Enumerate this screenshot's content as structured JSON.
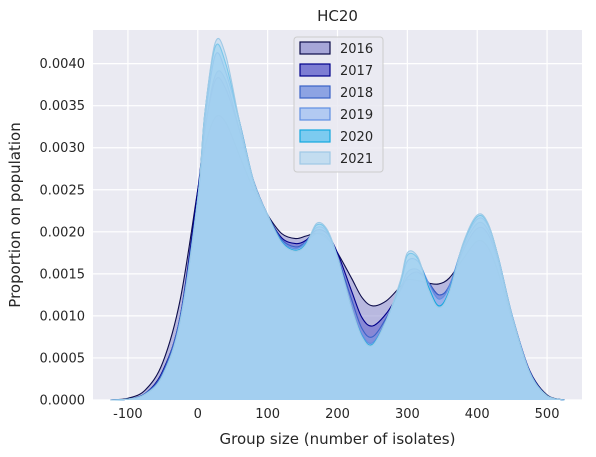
{
  "chart_data": {
    "type": "area",
    "title": "HC20",
    "xlabel": "Group size (number of isolates)",
    "ylabel": "Proportion on population",
    "xlim": [
      -150,
      550
    ],
    "ylim": [
      0,
      0.0044
    ],
    "x_ticks": [
      -100,
      0,
      100,
      200,
      300,
      400,
      500
    ],
    "y_ticks": [
      0.0,
      0.0005,
      0.001,
      0.0015,
      0.002,
      0.0025,
      0.003,
      0.0035,
      0.004
    ],
    "y_tick_labels": [
      "0.0000",
      "0.0005",
      "0.0010",
      "0.0015",
      "0.0020",
      "0.0025",
      "0.0030",
      "0.0035",
      "0.0040"
    ],
    "grid": true,
    "legend_position": "top-center",
    "x": [
      -125,
      -100,
      -75,
      -50,
      -25,
      0,
      10,
      25,
      40,
      60,
      80,
      100,
      120,
      140,
      155,
      170,
      185,
      200,
      220,
      235,
      250,
      270,
      290,
      300,
      315,
      330,
      345,
      360,
      380,
      400,
      415,
      430,
      450,
      475,
      500,
      525
    ],
    "series": [
      {
        "name": "2016",
        "fill": "#9a9ad4",
        "edge": "#0c0c4a",
        "values": [
          0.0,
          2e-05,
          0.00012,
          0.00045,
          0.0012,
          0.0025,
          0.003,
          0.00336,
          0.0033,
          0.0029,
          0.0025,
          0.0022,
          0.00198,
          0.00192,
          0.00195,
          0.00198,
          0.00192,
          0.00175,
          0.00145,
          0.00122,
          0.00112,
          0.00118,
          0.00135,
          0.00143,
          0.00142,
          0.00139,
          0.00138,
          0.00145,
          0.00168,
          0.00189,
          0.00182,
          0.00152,
          0.00095,
          0.00035,
          6e-05,
          0.0
        ]
      },
      {
        "name": "2017",
        "fill": "#6a6acf",
        "edge": "#00008b",
        "values": [
          0.0,
          1e-05,
          8e-05,
          0.00035,
          0.001,
          0.0025,
          0.0032,
          0.0038,
          0.0037,
          0.0032,
          0.0026,
          0.0022,
          0.00193,
          0.00186,
          0.0019,
          0.00202,
          0.00198,
          0.00175,
          0.0013,
          0.00098,
          0.00088,
          0.00103,
          0.0013,
          0.00146,
          0.00152,
          0.0014,
          0.00125,
          0.00135,
          0.00178,
          0.00204,
          0.00198,
          0.00165,
          0.001,
          0.00035,
          5e-05,
          0.0
        ]
      },
      {
        "name": "2018",
        "fill": "#7c96e0",
        "edge": "#3a62c8",
        "values": [
          0.0,
          1e-05,
          8e-05,
          0.00033,
          0.001,
          0.0024,
          0.0032,
          0.00386,
          0.0038,
          0.0032,
          0.0026,
          0.0022,
          0.00191,
          0.00182,
          0.00188,
          0.00198,
          0.00194,
          0.0017,
          0.0012,
          0.00085,
          0.00075,
          0.00098,
          0.00132,
          0.00152,
          0.00155,
          0.0014,
          0.00125,
          0.00136,
          0.00182,
          0.0021,
          0.00203,
          0.00168,
          0.001,
          0.00034,
          5e-05,
          0.0
        ]
      },
      {
        "name": "2019",
        "fill": "#a8c4f2",
        "edge": "#5f8fe3",
        "values": [
          0.0,
          1e-05,
          7e-05,
          0.0003,
          0.00095,
          0.0024,
          0.0033,
          0.0041,
          0.0039,
          0.0033,
          0.0026,
          0.0022,
          0.00189,
          0.0018,
          0.00188,
          0.00205,
          0.002,
          0.0017,
          0.0011,
          0.00078,
          0.00068,
          0.00095,
          0.00138,
          0.00165,
          0.00165,
          0.0014,
          0.0012,
          0.00135,
          0.00185,
          0.00215,
          0.00208,
          0.0017,
          0.00101,
          0.00034,
          5e-05,
          0.0
        ]
      },
      {
        "name": "2020",
        "fill": "#69c6f0",
        "edge": "#13a8df",
        "values": [
          0.0,
          1e-05,
          7e-05,
          0.0003,
          0.00095,
          0.0024,
          0.0034,
          0.0042,
          0.004,
          0.0033,
          0.0026,
          0.0022,
          0.00188,
          0.00178,
          0.00186,
          0.00208,
          0.00202,
          0.0017,
          0.0011,
          0.00076,
          0.00066,
          0.00095,
          0.0014,
          0.00172,
          0.00168,
          0.00135,
          0.00112,
          0.0013,
          0.00186,
          0.00218,
          0.0021,
          0.0017,
          0.001,
          0.00033,
          5e-05,
          0.0
        ]
      },
      {
        "name": "2021",
        "fill": "#bcdaf0",
        "edge": "#9ec9e6",
        "values": [
          0.0,
          1e-05,
          7e-05,
          0.0003,
          0.00095,
          0.0024,
          0.0034,
          0.00425,
          0.0041,
          0.0033,
          0.0026,
          0.0022,
          0.00187,
          0.00177,
          0.00185,
          0.0021,
          0.00203,
          0.0017,
          0.0011,
          0.00075,
          0.00065,
          0.00095,
          0.00142,
          0.00175,
          0.0017,
          0.00132,
          0.0011,
          0.00128,
          0.00187,
          0.0022,
          0.00211,
          0.0017,
          0.001,
          0.00033,
          5e-05,
          0.0
        ]
      }
    ]
  }
}
